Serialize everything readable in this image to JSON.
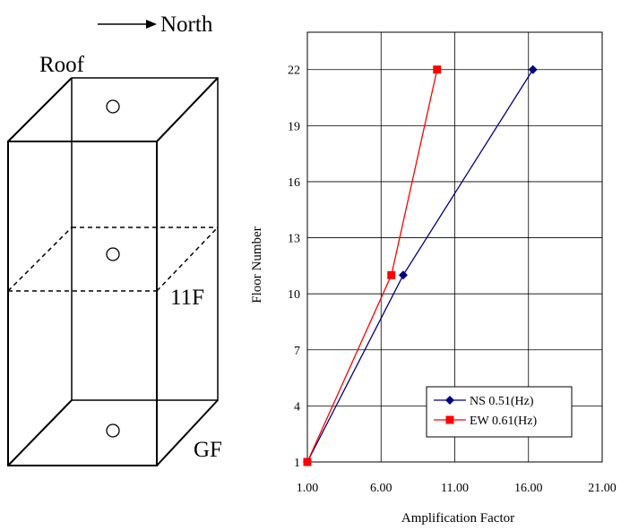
{
  "diagram": {
    "north_label": "North",
    "roof_label": "Roof",
    "mid_label": "11F",
    "ground_label": "GF"
  },
  "chart_data": {
    "type": "line",
    "title": "",
    "xlabel": "Amplification Factor",
    "ylabel": "Floor Number",
    "xlim": [
      1.0,
      21.0
    ],
    "ylim": [
      1,
      24
    ],
    "x_ticks": [
      "1.00",
      "6.00",
      "11.00",
      "16.00",
      "21.00"
    ],
    "y_ticks": [
      "1",
      "4",
      "7",
      "10",
      "13",
      "16",
      "19",
      "22"
    ],
    "grid": true,
    "legend_position": "bottom-right",
    "series": [
      {
        "name": "NS 0.51(Hz)",
        "color": "#000080",
        "marker": "diamond",
        "points": [
          {
            "x": 1.0,
            "y": 1
          },
          {
            "x": 7.5,
            "y": 11
          },
          {
            "x": 16.3,
            "y": 22
          }
        ]
      },
      {
        "name": "EW 0.61(Hz)",
        "color": "#ff0000",
        "marker": "square",
        "points": [
          {
            "x": 1.0,
            "y": 1
          },
          {
            "x": 6.7,
            "y": 11
          },
          {
            "x": 9.8,
            "y": 22
          }
        ]
      }
    ]
  }
}
